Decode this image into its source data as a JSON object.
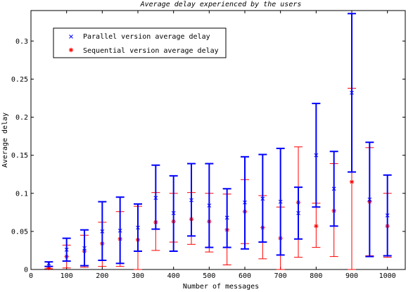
{
  "chart_data": {
    "type": "scatter",
    "title": "Average delay experienced by the users",
    "xlabel": "Number of messages",
    "ylabel": "Average delay",
    "xlim": [
      0,
      1050
    ],
    "ylim": [
      0,
      0.34
    ],
    "xticks": [
      0,
      100,
      200,
      300,
      400,
      500,
      600,
      700,
      800,
      900,
      1000
    ],
    "yticks": [
      0,
      0.05,
      0.1,
      0.15,
      0.2,
      0.25,
      0.3
    ],
    "ytick_labels": [
      "0",
      "0.05",
      "0.1",
      "0.15",
      "0.2",
      "0.25",
      "0.3"
    ],
    "grid": false,
    "legend_position": "top-left",
    "x": [
      50,
      100,
      150,
      200,
      250,
      300,
      350,
      400,
      450,
      500,
      550,
      600,
      650,
      700,
      750,
      800,
      850,
      900,
      950,
      1000
    ],
    "series": [
      {
        "name": "Parallel version average delay",
        "marker": "x",
        "color": "#0000ff",
        "values": [
          0.008,
          0.026,
          0.028,
          0.05,
          0.051,
          0.055,
          0.094,
          0.074,
          0.091,
          0.084,
          0.068,
          0.088,
          0.093,
          0.089,
          0.074,
          0.15,
          0.106,
          0.232,
          0.092,
          0.071
        ],
        "lower": [
          0.004,
          0.011,
          0.005,
          0.012,
          0.008,
          0.024,
          0.053,
          0.024,
          0.044,
          0.029,
          0.029,
          0.027,
          0.036,
          0.019,
          0.04,
          0.082,
          0.057,
          0.128,
          0.017,
          0.018
        ],
        "upper": [
          0.01,
          0.041,
          0.052,
          0.089,
          0.095,
          0.086,
          0.137,
          0.123,
          0.139,
          0.139,
          0.106,
          0.148,
          0.151,
          0.159,
          0.108,
          0.218,
          0.155,
          0.336,
          0.167,
          0.124
        ]
      },
      {
        "name": "Sequential version average delay",
        "marker": "*",
        "color": "#ff0000",
        "values": [
          0.002,
          0.017,
          0.024,
          0.034,
          0.04,
          0.039,
          0.062,
          0.063,
          0.066,
          0.063,
          0.052,
          0.076,
          0.055,
          0.041,
          0.088,
          0.057,
          0.077,
          0.115,
          0.089,
          0.057
        ],
        "lower": [
          0.001,
          0.002,
          0.003,
          0.004,
          0.004,
          0.0,
          0.025,
          0.036,
          0.033,
          0.023,
          0.006,
          0.034,
          0.014,
          0.0,
          0.016,
          0.029,
          0.017,
          0.0,
          0.018,
          0.016
        ],
        "upper": [
          0.004,
          0.032,
          0.045,
          0.062,
          0.076,
          0.083,
          0.101,
          0.1,
          0.101,
          0.1,
          0.099,
          0.118,
          0.097,
          0.082,
          0.161,
          0.087,
          0.139,
          0.238,
          0.16,
          0.1
        ]
      }
    ]
  }
}
